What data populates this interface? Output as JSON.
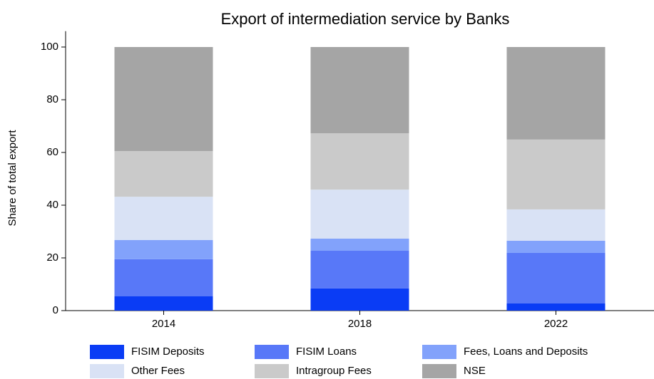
{
  "chart_data": {
    "type": "stacked_bar",
    "title": "Export of intermediation service by Banks",
    "y_label": "Share of total export",
    "categories": [
      "2014",
      "2018",
      "2022"
    ],
    "series": [
      {
        "name": "FISIM Deposits",
        "color": "#0a3cf5",
        "values": [
          5.5,
          8.4,
          2.7
        ]
      },
      {
        "name": "FISIM Loans",
        "color": "#5878f8",
        "values": [
          14,
          14.3,
          19.2
        ]
      },
      {
        "name": "Fees, Loans and Deposits",
        "color": "#82a2fb",
        "values": [
          7.3,
          4.6,
          4.6
        ]
      },
      {
        "name": "Other Fees",
        "color": "#d9e2f5",
        "values": [
          16.4,
          18.6,
          11.9
        ]
      },
      {
        "name": "Intragroup Fees",
        "color": "#cacaca",
        "values": [
          17.3,
          21.4,
          26.5
        ]
      },
      {
        "name": "NSE",
        "color": "#a5a5a5",
        "values": [
          39.5,
          32.7,
          35.1
        ]
      }
    ],
    "ylim": [
      0,
      106
    ],
    "yticks": [
      0,
      20,
      40,
      60,
      80,
      100
    ]
  }
}
